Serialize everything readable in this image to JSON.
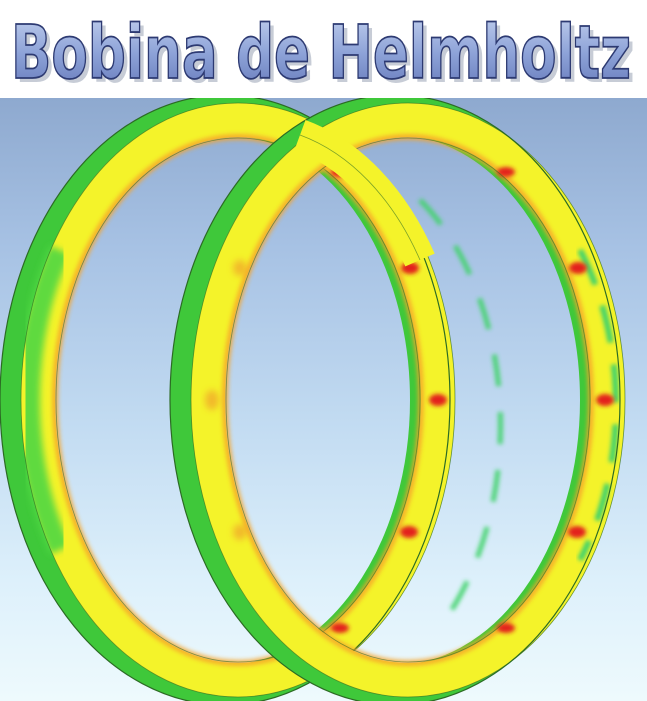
{
  "title": "Bobina de Helmholtz",
  "colors": {
    "title_fill": "#7f95cf",
    "title_stroke": "#2d3a72",
    "background_top": "#8ea9cf",
    "background_bottom": "#eefafd",
    "ring_yellow": "#f6f528",
    "ring_green": "#34d63a",
    "ring_red": "#e3241b",
    "ring_orange": "#f5a623",
    "ring_edge": "#2e5a1e"
  },
  "scene": {
    "rings": [
      {
        "name": "left-coil"
      },
      {
        "name": "right-coil"
      }
    ]
  }
}
